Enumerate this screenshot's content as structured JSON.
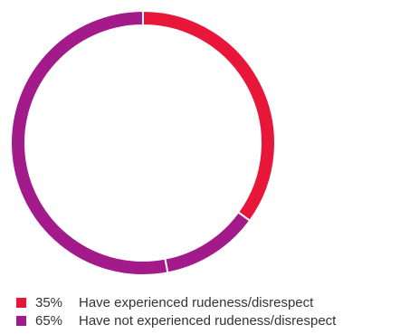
{
  "chart_data": {
    "type": "pie",
    "variant": "donut",
    "categories": [
      "Have experienced rudeness/disrespect",
      "Have not experienced rudeness/disrespect"
    ],
    "values": [
      35,
      65
    ],
    "value_labels": [
      "35%",
      "65%"
    ],
    "colors": [
      "#e8173a",
      "#a31b8a"
    ],
    "slice_color_sequence": [
      "#e8173a",
      "#a31b8a",
      "#a31b8a"
    ],
    "slice_values": [
      35,
      12,
      53
    ],
    "title": "",
    "legend_position": "bottom-left"
  },
  "legend": {
    "items": [
      {
        "percent": "35%",
        "label": "Have experienced rudeness/disrespect",
        "color": "#e8173a"
      },
      {
        "percent": "65%",
        "label": "Have not experienced rudeness/disrespect",
        "color": "#a31b8a"
      }
    ]
  }
}
